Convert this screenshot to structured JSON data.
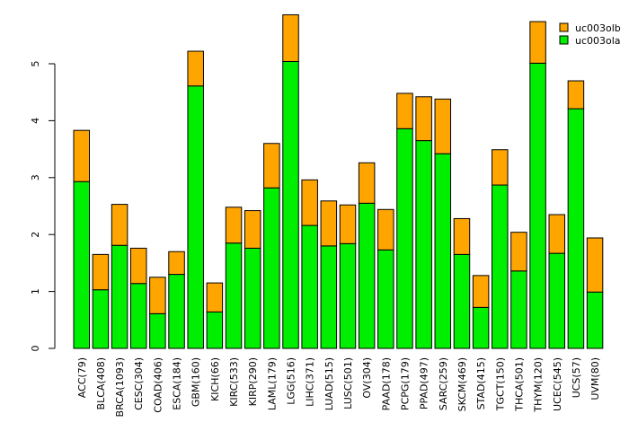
{
  "chart_data": {
    "type": "bar",
    "stacked": true,
    "title": "",
    "xlabel": "",
    "ylabel": "",
    "ylim": [
      0,
      5.95
    ],
    "yticks": [
      0,
      1,
      2,
      3,
      4,
      5
    ],
    "legend_position": "top-right",
    "categories": [
      "ACC(79)",
      "BLCA(408)",
      "BRCA(1093)",
      "CESC(304)",
      "COAD(406)",
      "ESCA(184)",
      "GBM(160)",
      "KICH(66)",
      "KIRC(533)",
      "KIRP(290)",
      "LAML(179)",
      "LGG(516)",
      "LIHC(371)",
      "LUAD(515)",
      "LUSC(501)",
      "OV(304)",
      "PAAD(178)",
      "PCPG(179)",
      "PPAD(497)",
      "SARC(259)",
      "SKCM(469)",
      "STAD(415)",
      "TGCT(150)",
      "THCA(501)",
      "THYM(120)",
      "UCEC(545)",
      "UCS(57)",
      "UVM(80)"
    ],
    "series": [
      {
        "name": "uc003ola",
        "color": "#00ee00",
        "values": [
          2.93,
          1.03,
          1.81,
          1.14,
          0.61,
          1.3,
          4.61,
          0.64,
          1.85,
          1.76,
          2.82,
          5.04,
          2.16,
          1.8,
          1.84,
          2.55,
          1.73,
          3.86,
          3.65,
          3.42,
          1.65,
          0.72,
          2.87,
          1.36,
          5.01,
          1.67,
          4.21,
          0.99
        ]
      },
      {
        "name": "uc003olb",
        "color": "#ffa500",
        "values": [
          0.9,
          0.62,
          0.72,
          0.62,
          0.64,
          0.4,
          0.61,
          0.51,
          0.63,
          0.66,
          0.78,
          0.82,
          0.8,
          0.79,
          0.68,
          0.71,
          0.71,
          0.62,
          0.77,
          0.96,
          0.63,
          0.56,
          0.62,
          0.68,
          0.73,
          0.68,
          0.49,
          0.95
        ]
      }
    ],
    "legend": [
      "uc003olb",
      "uc003ola"
    ]
  }
}
